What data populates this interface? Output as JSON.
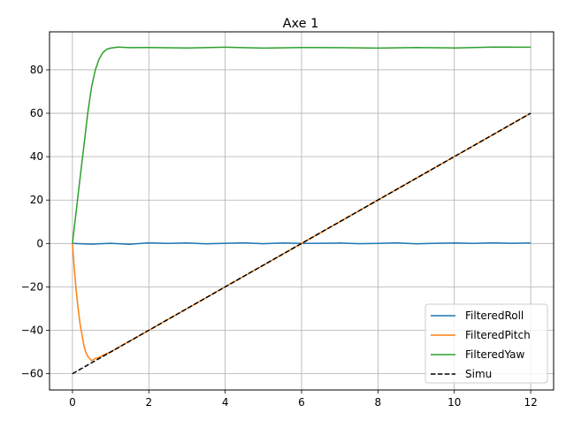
{
  "chart_data": {
    "type": "line",
    "title": "Axe 1",
    "xlabel": "",
    "ylabel": "",
    "xlim": [
      -0.6,
      12.6
    ],
    "ylim": [
      -67.5,
      97.5
    ],
    "x_ticks": [
      0,
      2,
      4,
      6,
      8,
      10,
      12
    ],
    "y_ticks": [
      -60,
      -40,
      -20,
      0,
      20,
      40,
      60,
      80
    ],
    "grid": true,
    "legend_position": "lower-right",
    "series": [
      {
        "name": "FilteredRoll",
        "color": "#1f77b4",
        "style": "solid",
        "x": [
          0,
          0.5,
          1,
          1.5,
          2,
          2.5,
          3,
          3.5,
          4,
          4.5,
          5,
          5.5,
          6,
          6.5,
          7,
          7.5,
          8,
          8.5,
          9,
          9.5,
          10,
          10.5,
          11,
          11.5,
          12
        ],
        "y": [
          0,
          -0.3,
          0.1,
          -0.4,
          0.3,
          0,
          0.2,
          -0.2,
          0.1,
          0.3,
          -0.1,
          0.2,
          0,
          0.1,
          0.2,
          -0.1,
          0,
          0.3,
          -0.2,
          0.1,
          0.2,
          0,
          0.3,
          0.1,
          0.2
        ]
      },
      {
        "name": "FilteredPitch",
        "color": "#ff7f0e",
        "style": "solid",
        "x": [
          0,
          0.05,
          0.1,
          0.15,
          0.2,
          0.25,
          0.3,
          0.35,
          0.4,
          0.45,
          0.5,
          0.55,
          0.6,
          0.7,
          0.8,
          1,
          2,
          3,
          4,
          5,
          6,
          7,
          8,
          9,
          10,
          11,
          12
        ],
        "y": [
          0,
          -12,
          -22,
          -30,
          -37,
          -42,
          -47,
          -50,
          -52,
          -53,
          -54,
          -53.5,
          -53,
          -52.5,
          -51.5,
          -50,
          -40,
          -30,
          -20,
          -10,
          0,
          10,
          20,
          30,
          40,
          50,
          60
        ]
      },
      {
        "name": "FilteredYaw",
        "color": "#2ca02c",
        "style": "solid",
        "x": [
          0,
          0.1,
          0.2,
          0.3,
          0.4,
          0.5,
          0.6,
          0.7,
          0.8,
          0.9,
          1,
          1.2,
          1.5,
          2,
          3,
          4,
          5,
          6,
          7,
          8,
          9,
          10,
          11,
          12
        ],
        "y": [
          0,
          15,
          30,
          45,
          60,
          72,
          80,
          85,
          88,
          89.5,
          90,
          90.5,
          90.2,
          90.3,
          90.1,
          90.4,
          90,
          90.3,
          90.2,
          90,
          90.3,
          90.1,
          90.5,
          90.4
        ]
      },
      {
        "name": "Simu",
        "color": "#000000",
        "style": "dashed",
        "x": [
          0,
          12
        ],
        "y": [
          -60,
          60
        ]
      }
    ]
  }
}
